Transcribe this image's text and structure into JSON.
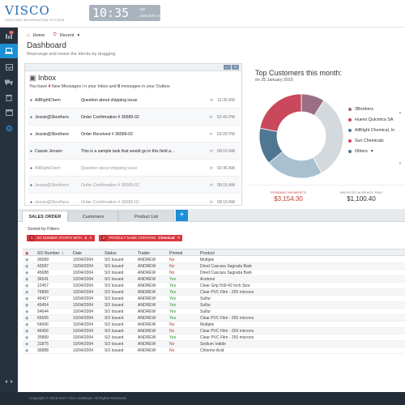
{
  "header": {
    "logo_title": "VISCO",
    "logo_sub": "VENTURE INFORMATION SYSTEM",
    "clock_time": "10:35",
    "clock_day": "AM",
    "clock_date": "JANUARY 25, 2005"
  },
  "sidebar": {
    "badge": "41",
    "items": [
      "gauge-icon",
      "laptop-icon",
      "inbox-icon",
      "truck-icon",
      "trash-icon",
      "box-icon",
      "settings-icon"
    ],
    "active_index": 1
  },
  "breadcrumb": {
    "home": "Home",
    "recent": "Recent"
  },
  "page": {
    "title": "Dashboard",
    "subtitle": "Rearrange and resize the blocks by dragging"
  },
  "inbox": {
    "title": "Inbox",
    "msg_pre": "You have",
    "new_count": "4",
    "msg_mid": "New Messages i n your Inbox and",
    "outbox_count": "0",
    "msg_post": "messages in your Outbox",
    "messages": [
      {
        "user": "AllRightChem",
        "subject": "Question about shipping issue",
        "time": "11:30 AM",
        "state": "bold"
      },
      {
        "user": "Jessie@3brothers",
        "subject": "Order Confirmation # 36589-02",
        "time": "02:40 PM",
        "state": "bold"
      },
      {
        "user": "Jessie@3brothers",
        "subject": "Order Received # 36589-02",
        "time": "03:00 PM",
        "state": "bold"
      },
      {
        "user": "Cassie Jensen",
        "subject": "This is a sample task that would go in this field a...",
        "time": "08:10 AM",
        "state": "bold"
      },
      {
        "user": "AllRightChem",
        "subject": "Question about shipping issue",
        "time": "02:40 AM",
        "state": "dim"
      },
      {
        "user": "Jessie@3brothers",
        "subject": "Order Confirmation # 36589-02",
        "time": "08:10 AM",
        "state": "dim"
      },
      {
        "user": "Jessie@3brothers",
        "subject": "Order Confirmation # 36589-02",
        "time": "08:10 AM",
        "state": "dim"
      }
    ]
  },
  "top_customers": {
    "title": "Top Customers this month:",
    "date_label": "on 25 January 2015",
    "legend": [
      {
        "name": "3Brothers",
        "color": "#9a6f86"
      },
      {
        "name": "Huevo Quicmica SA",
        "color": "#c9485b"
      },
      {
        "name": "AllRight Chemical, In",
        "color": "#4f7791"
      },
      {
        "name": "Sun Chemicals",
        "color": "#c9485b"
      },
      {
        "name": "Others",
        "color": "#4f7791"
      }
    ],
    "slices": [
      {
        "value": 9,
        "color": "#9a6f86"
      },
      {
        "value": 33,
        "color": "#d4d9de"
      },
      {
        "value": 22,
        "color": "#a9c0d1"
      },
      {
        "value": 14,
        "color": "#4f7791"
      },
      {
        "value": 22,
        "color": "#c9485b"
      }
    ],
    "pending_label": "PENDING PAYMENTS",
    "pending_value": "$3,154.30",
    "invoices_label": "INVOICES ALREADY PAID",
    "invoices_value": "$1,100.40"
  },
  "tabs": [
    "SALES ORDER",
    "Customers",
    "Product List"
  ],
  "tab_add": "+",
  "filters": {
    "label": "Sorted by Filters:",
    "chips": [
      {
        "num": "1",
        "text": "SO NUMBER STARTS WITH",
        "value": "3"
      },
      {
        "num": "2",
        "text": "PRODUCT NAME CONTAINS",
        "value": "Chemical"
      }
    ]
  },
  "table": {
    "columns": [
      "SO Number",
      "Date",
      "Status",
      "Trader",
      "Printed",
      "Product"
    ],
    "rows": [
      [
        "36589",
        "10/04/2004",
        "SO Issued",
        "ANDREW",
        "No",
        "Multiple"
      ],
      [
        "42587",
        "10/04/2004",
        "SO Issued",
        "ANDREW",
        "No",
        "Dried Cascara Sagrada Bark"
      ],
      [
        "45688",
        "10/04/2004",
        "SO Issued",
        "ANDREW",
        "No",
        "Dried Cascara Sagrada Bark"
      ],
      [
        "36541",
        "10/04/2004",
        "SO Issued",
        "ANDREW",
        "Yes",
        "Acetone"
      ],
      [
        "12457",
        "10/04/2004",
        "SO Issued",
        "ANDREW",
        "Yes",
        "Clear Grip 500-42 Inch Size"
      ],
      [
        "76899",
        "10/04/2004",
        "SO Issued",
        "ANDREW",
        "Yes",
        "Clear PVC Film - 250 microns"
      ],
      [
        "45457",
        "10/04/2004",
        "SO Issued",
        "ANDREW",
        "Yes",
        "Sulfur"
      ],
      [
        "45454",
        "10/04/2004",
        "SO Issued",
        "ANDREW",
        "Yes",
        "Sulfur"
      ],
      [
        "54644",
        "10/04/2004",
        "SO Issued",
        "ANDREW",
        "Yes",
        "Sulfur"
      ],
      [
        "65655",
        "10/04/2004",
        "SO Issued",
        "ANDREW",
        "Yes",
        "Clear PVC Film - 250 microns"
      ],
      [
        "54566",
        "10/04/2004",
        "SO Issued",
        "ANDREW",
        "No",
        "Multiple"
      ],
      [
        "46456",
        "10/04/2004",
        "SO Issued",
        "ANDREW",
        "No",
        "Clear PVC Film - 250 microns"
      ],
      [
        "35889",
        "10/04/2004",
        "SO Issued",
        "ANDREW",
        "Yes",
        "Clear PVC Film - 250 microns"
      ],
      [
        "31875",
        "10/04/2004",
        "SO Issued",
        "ANDREW",
        "No",
        "Sodium Iodide"
      ],
      [
        "36888",
        "10/04/2004",
        "SO Issued",
        "ANDREW",
        "No",
        "Chlorine Acid"
      ]
    ]
  },
  "footer": "Copyright © 2016-2017 Visco Software. All Rights Reserved."
}
